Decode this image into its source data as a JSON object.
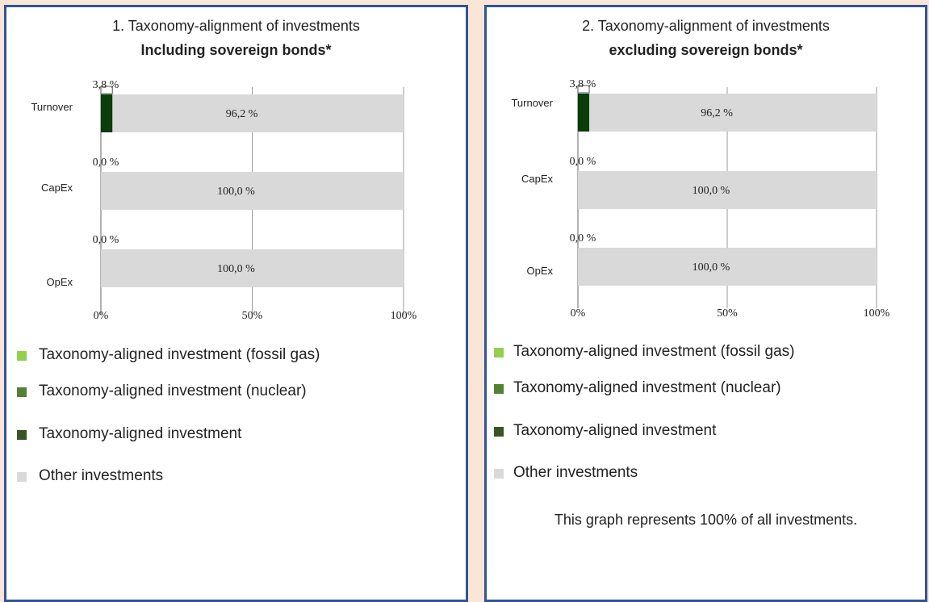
{
  "colors": {
    "fossil_gas": "#92d050",
    "nuclear": "#548235",
    "aligned": "#375623",
    "aligned_bar": "#0b3d0b",
    "other": "#d9d9d9",
    "border": "#2f5597",
    "background": "#fbe5d6"
  },
  "chart_data": [
    {
      "type": "bar",
      "orientation": "horizontal",
      "stacked": true,
      "title": "1. Taxonomy-alignment of investments",
      "subtitle": "Including sovereign bonds*",
      "categories": [
        "Turnover",
        "CapEx",
        "OpEx"
      ],
      "series": [
        {
          "name": "Taxonomy-aligned investment",
          "values": [
            3.8,
            0.0,
            0.0
          ],
          "labels": [
            "3,8 %",
            "0,0 %",
            "0,0 %"
          ]
        },
        {
          "name": "Other investments",
          "values": [
            96.2,
            100.0,
            100.0
          ],
          "labels": [
            "96,2 %",
            "100,0 %",
            "100,0 %"
          ]
        }
      ],
      "xlim": [
        0,
        100
      ],
      "xticks": [
        "0%",
        "50%",
        "100%"
      ],
      "grid": true,
      "legend": [
        "Taxonomy-aligned investment (fossil gas)",
        "Taxonomy-aligned investment (nuclear)",
        "Taxonomy-aligned investment",
        "Other investments"
      ]
    },
    {
      "type": "bar",
      "orientation": "horizontal",
      "stacked": true,
      "title": "2. Taxonomy-alignment of investments",
      "subtitle": "excluding sovereign bonds*",
      "categories": [
        "Turnover",
        "CapEx",
        "OpEx"
      ],
      "series": [
        {
          "name": "Taxonomy-aligned investment",
          "values": [
            3.8,
            0.0,
            0.0
          ],
          "labels": [
            "3,8 %",
            "0,0 %",
            "0,0 %"
          ]
        },
        {
          "name": "Other investments",
          "values": [
            96.2,
            100.0,
            100.0
          ],
          "labels": [
            "96,2 %",
            "100,0 %",
            "100,0 %"
          ]
        }
      ],
      "xlim": [
        0,
        100
      ],
      "xticks": [
        "0%",
        "50%",
        "100%"
      ],
      "grid": true,
      "legend": [
        "Taxonomy-aligned investment (fossil gas)",
        "Taxonomy-aligned investment (nuclear)",
        "Taxonomy-aligned investment",
        "Other investments"
      ],
      "note": "This graph represents 100% of all investments."
    }
  ]
}
